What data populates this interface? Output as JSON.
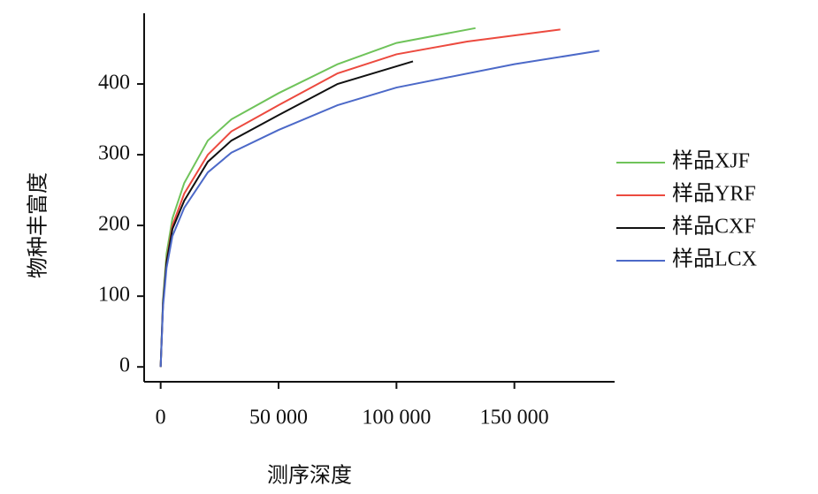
{
  "chart_data": {
    "type": "line",
    "x_label": "测序深度",
    "y_label": "物种丰富度",
    "xlim": [
      -7000,
      192500
    ],
    "ylim": [
      -21,
      500
    ],
    "xticks": [
      0,
      {
        "value": 50000,
        "label": "50 000"
      },
      {
        "value": 100000,
        "label": "100 000"
      },
      {
        "value": 150000,
        "label": "150 000"
      }
    ],
    "yticks": [
      0,
      100,
      200,
      300,
      400
    ],
    "legend": "right",
    "series": [
      {
        "name": "样品XJF",
        "color": "#6fc35a",
        "x": [
          0,
          1000,
          2500,
          5000,
          10000,
          20000,
          30000,
          50000,
          75000,
          100000,
          133500
        ],
        "values": [
          0,
          95,
          160,
          210,
          260,
          320,
          350,
          387,
          428,
          458,
          479
        ]
      },
      {
        "name": "样品YRF",
        "color": "#ec4a3f",
        "x": [
          0,
          1000,
          2500,
          5000,
          10000,
          20000,
          30000,
          50000,
          75000,
          100000,
          130000,
          169500
        ],
        "values": [
          0,
          90,
          150,
          200,
          245,
          300,
          333,
          370,
          415,
          442,
          460,
          477
        ]
      },
      {
        "name": "样品CXF",
        "color": "#111111",
        "x": [
          0,
          1000,
          2500,
          5000,
          10000,
          20000,
          30000,
          50000,
          75000,
          107000
        ],
        "values": [
          0,
          90,
          148,
          195,
          235,
          290,
          320,
          356,
          400,
          432
        ]
      },
      {
        "name": "样品LCX",
        "color": "#4c69c8",
        "x": [
          0,
          1000,
          2500,
          5000,
          10000,
          20000,
          30000,
          50000,
          75000,
          100000,
          150000,
          186000
        ],
        "values": [
          0,
          85,
          140,
          185,
          225,
          275,
          303,
          335,
          370,
          395,
          428,
          447
        ]
      }
    ]
  }
}
